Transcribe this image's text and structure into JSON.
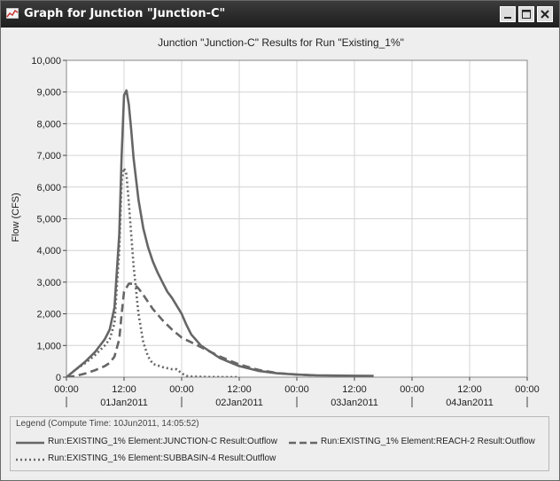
{
  "window": {
    "title": "Graph for Junction \"Junction-C\"",
    "controls": [
      "minimize",
      "maximize",
      "close"
    ]
  },
  "legend": {
    "title": "Legend (Compute Time: 10Jun2011, 14:05:52)",
    "entries": [
      "Run:EXISTING_1% Element:JUNCTION-C Result:Outflow",
      "Run:EXISTING_1% Element:REACH-2 Result:Outflow",
      "Run:EXISTING_1% Element:SUBBASIN-4 Result:Outflow"
    ]
  },
  "colors": {
    "series": "#666666",
    "titlebar": "#2a2a2a",
    "grid": "#d4d4d4"
  },
  "chart_data": {
    "type": "line",
    "title": "Junction \"Junction-C\" Results for Run \"Existing_1%\"",
    "ylabel": "Flow (CFS)",
    "xlabel": "",
    "ylim": [
      0,
      10000
    ],
    "xlim_hours": [
      0,
      96
    ],
    "y_ticks": [
      "0",
      "1,000",
      "2,000",
      "3,000",
      "4,000",
      "5,000",
      "6,000",
      "7,000",
      "8,000",
      "9,000",
      "10,000"
    ],
    "time_ticks": [
      "00:00",
      "12:00",
      "00:00",
      "12:00",
      "00:00",
      "12:00",
      "00:00",
      "12:00",
      "00:00"
    ],
    "date_labels": [
      "01Jan2011",
      "02Jan2011",
      "03Jan2011",
      "04Jan2011"
    ],
    "grid": true,
    "legend_position": "bottom",
    "series": [
      {
        "name": "Run:EXISTING_1% Element:JUNCTION-C Result:Outflow",
        "style": "solid",
        "x": [
          0,
          2,
          4,
          6,
          8,
          9,
          10,
          11,
          11.5,
          12,
          12.5,
          13,
          13.5,
          14,
          15,
          16,
          17,
          18,
          19,
          20,
          21,
          22,
          23,
          24,
          25,
          26,
          28,
          30,
          32,
          36,
          40,
          44,
          48,
          52,
          56,
          60,
          64
        ],
        "y": [
          0,
          250,
          500,
          800,
          1200,
          1500,
          2200,
          4500,
          7000,
          8900,
          9050,
          8600,
          7800,
          6900,
          5600,
          4700,
          4100,
          3650,
          3300,
          3000,
          2700,
          2500,
          2250,
          2000,
          1650,
          1350,
          1000,
          800,
          600,
          350,
          200,
          120,
          80,
          60,
          50,
          45,
          40
        ]
      },
      {
        "name": "Run:EXISTING_1% Element:REACH-2 Result:Outflow",
        "style": "dashed",
        "x": [
          0,
          2,
          4,
          6,
          8,
          9,
          10,
          11,
          11.5,
          12,
          13,
          14,
          15,
          16,
          18,
          20,
          22,
          24,
          26,
          28,
          32,
          36,
          40,
          44,
          48,
          52
        ],
        "y": [
          0,
          40,
          120,
          220,
          350,
          450,
          650,
          1200,
          2000,
          2700,
          2950,
          2950,
          2800,
          2600,
          2150,
          1800,
          1500,
          1250,
          1100,
          950,
          650,
          400,
          230,
          130,
          80,
          50
        ]
      },
      {
        "name": "Run:EXISTING_1% Element:SUBBASIN-4 Result:Outflow",
        "style": "dotted",
        "x": [
          0,
          2,
          4,
          6,
          8,
          9,
          10,
          11,
          11.5,
          12,
          12.5,
          13,
          14,
          15,
          16,
          17,
          18,
          20,
          22,
          23,
          24,
          25,
          26,
          28,
          30,
          36
        ],
        "y": [
          0,
          250,
          450,
          700,
          1000,
          1200,
          1700,
          4000,
          6200,
          6600,
          6400,
          5500,
          3500,
          2000,
          1100,
          650,
          420,
          320,
          250,
          250,
          120,
          40,
          20,
          10,
          5,
          0
        ]
      }
    ]
  }
}
